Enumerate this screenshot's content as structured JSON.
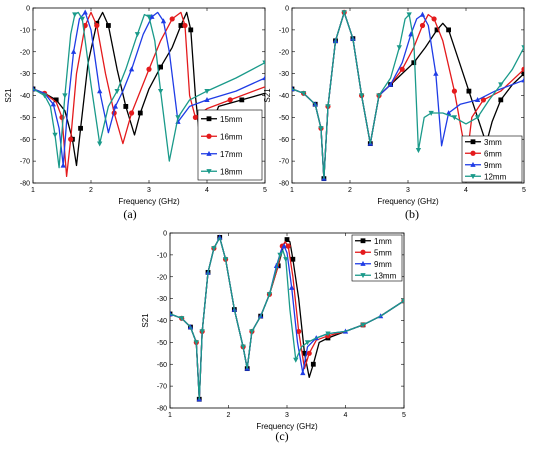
{
  "chart_data": [
    {
      "type": "line",
      "caption": "(a)",
      "xlabel": "Frequency (GHz)",
      "ylabel": "S21",
      "xlim": [
        1,
        5
      ],
      "ylim": [
        -80,
        0
      ],
      "xticks": [
        1,
        2,
        3,
        4,
        5
      ],
      "yticks": [
        0,
        -10,
        -20,
        -30,
        -40,
        -50,
        -60,
        -70,
        -80
      ],
      "legend_position": "right",
      "series": [
        {
          "name": "15mm",
          "color": "#000000",
          "marker": "square",
          "x": [
            1.0,
            1.2,
            1.4,
            1.55,
            1.68,
            1.75,
            1.82,
            1.95,
            2.1,
            2.2,
            2.3,
            2.45,
            2.6,
            2.75,
            2.85,
            3.0,
            3.2,
            3.4,
            3.55,
            3.65,
            3.72,
            3.8,
            3.9,
            4.2,
            4.6,
            5.0
          ],
          "y": [
            -37,
            -39,
            -42,
            -47,
            -60,
            -72,
            -55,
            -25,
            -7,
            -2,
            -8,
            -28,
            -45,
            -58,
            -48,
            -37,
            -27,
            -18,
            -8,
            -2,
            -10,
            -40,
            -66,
            -45,
            -42,
            -39
          ]
        },
        {
          "name": "16mm",
          "color": "#e41a1c",
          "marker": "circle",
          "x": [
            1.0,
            1.2,
            1.4,
            1.5,
            1.58,
            1.65,
            1.75,
            1.9,
            2.0,
            2.1,
            2.25,
            2.4,
            2.55,
            2.7,
            2.85,
            3.0,
            3.2,
            3.4,
            3.55,
            3.62,
            3.7,
            3.8,
            4.0,
            4.4,
            5.0
          ],
          "y": [
            -37,
            -39,
            -43,
            -50,
            -77,
            -60,
            -30,
            -8,
            -2,
            -8,
            -30,
            -48,
            -62,
            -48,
            -38,
            -28,
            -15,
            -5,
            -2,
            -8,
            -40,
            -50,
            -46,
            -42,
            -36
          ]
        },
        {
          "name": "17mm",
          "color": "#1f3ce6",
          "marker": "triangle",
          "x": [
            1.0,
            1.2,
            1.35,
            1.45,
            1.52,
            1.6,
            1.7,
            1.8,
            1.9,
            2.0,
            2.15,
            2.3,
            2.42,
            2.55,
            2.7,
            2.9,
            3.05,
            3.15,
            3.25,
            3.35,
            3.5,
            3.7,
            4.0,
            4.5,
            5.0
          ],
          "y": [
            -37,
            -39,
            -44,
            -55,
            -72,
            -45,
            -20,
            -5,
            -2,
            -10,
            -38,
            -57,
            -45,
            -38,
            -28,
            -12,
            -4,
            -2,
            -6,
            -20,
            -52,
            -45,
            -42,
            -38,
            -32
          ]
        },
        {
          "name": "18mm",
          "color": "#1a9a8a",
          "marker": "triangle-down",
          "x": [
            1.0,
            1.2,
            1.3,
            1.38,
            1.45,
            1.55,
            1.65,
            1.72,
            1.78,
            1.85,
            2.0,
            2.15,
            2.3,
            2.45,
            2.6,
            2.8,
            2.92,
            3.0,
            3.1,
            3.2,
            3.35,
            3.5,
            3.7,
            4.0,
            4.5,
            5.0
          ],
          "y": [
            -37,
            -40,
            -45,
            -58,
            -73,
            -40,
            -12,
            -3,
            -2,
            -5,
            -35,
            -62,
            -45,
            -38,
            -28,
            -12,
            -3,
            -4,
            -15,
            -38,
            -70,
            -50,
            -42,
            -38,
            -32,
            -25
          ]
        }
      ]
    },
    {
      "type": "line",
      "caption": "(b)",
      "xlabel": "Frequency (GHz)",
      "ylabel": "S21",
      "xlim": [
        1,
        5
      ],
      "ylim": [
        -80,
        0
      ],
      "xticks": [
        1,
        2,
        3,
        4,
        5
      ],
      "yticks": [
        0,
        -10,
        -20,
        -30,
        -40,
        -50,
        -60,
        -70,
        -80
      ],
      "legend_position": "bottom-right",
      "series": [
        {
          "name": "3mm",
          "color": "#000000",
          "marker": "square",
          "x": [
            1.0,
            1.2,
            1.4,
            1.5,
            1.55,
            1.62,
            1.75,
            1.9,
            2.05,
            2.2,
            2.35,
            2.5,
            2.7,
            2.9,
            3.1,
            3.3,
            3.5,
            3.6,
            3.7,
            3.85,
            4.05,
            4.2,
            4.35,
            4.45,
            4.6,
            4.8,
            5.0
          ],
          "y": [
            -37,
            -39,
            -44,
            -55,
            -78,
            -45,
            -15,
            -2,
            -14,
            -40,
            -62,
            -40,
            -35,
            -30,
            -25,
            -18,
            -10,
            -7,
            -10,
            -22,
            -38,
            -50,
            -62,
            -52,
            -42,
            -35,
            -30
          ]
        },
        {
          "name": "6mm",
          "color": "#e41a1c",
          "marker": "circle",
          "x": [
            1.0,
            1.2,
            1.4,
            1.5,
            1.55,
            1.62,
            1.75,
            1.9,
            2.05,
            2.2,
            2.35,
            2.5,
            2.7,
            2.9,
            3.1,
            3.25,
            3.35,
            3.45,
            3.6,
            3.8,
            3.95,
            4.0,
            4.1,
            4.3,
            4.6,
            5.0
          ],
          "y": [
            -37,
            -39,
            -44,
            -55,
            -78,
            -45,
            -15,
            -2,
            -14,
            -40,
            -62,
            -40,
            -35,
            -28,
            -18,
            -8,
            -3,
            -5,
            -15,
            -38,
            -60,
            -72,
            -50,
            -42,
            -38,
            -28
          ]
        },
        {
          "name": "9mm",
          "color": "#1f3ce6",
          "marker": "triangle",
          "x": [
            1.0,
            1.2,
            1.4,
            1.5,
            1.55,
            1.62,
            1.75,
            1.9,
            2.05,
            2.2,
            2.35,
            2.5,
            2.7,
            2.9,
            3.05,
            3.15,
            3.25,
            3.35,
            3.48,
            3.58,
            3.7,
            3.9,
            4.2,
            4.5,
            5.0
          ],
          "y": [
            -37,
            -39,
            -44,
            -55,
            -78,
            -45,
            -15,
            -2,
            -14,
            -40,
            -62,
            -40,
            -35,
            -25,
            -12,
            -5,
            -3,
            -8,
            -30,
            -63,
            -48,
            -44,
            -42,
            -38,
            -33
          ]
        },
        {
          "name": "12mm",
          "color": "#1a9a8a",
          "marker": "triangle-down",
          "x": [
            1.0,
            1.2,
            1.4,
            1.5,
            1.55,
            1.62,
            1.75,
            1.9,
            2.05,
            2.2,
            2.35,
            2.5,
            2.7,
            2.85,
            2.95,
            3.02,
            3.1,
            3.18,
            3.28,
            3.4,
            3.6,
            3.8,
            4.0,
            4.2,
            4.4,
            4.6,
            4.8,
            5.0
          ],
          "y": [
            -37,
            -39,
            -44,
            -55,
            -78,
            -45,
            -15,
            -2,
            -14,
            -40,
            -62,
            -40,
            -32,
            -18,
            -5,
            -3,
            -15,
            -65,
            -50,
            -48,
            -48,
            -50,
            -53,
            -50,
            -42,
            -35,
            -28,
            -18
          ]
        }
      ]
    },
    {
      "type": "line",
      "caption": "(c)",
      "xlabel": "Frequency (GHz)",
      "ylabel": "S21",
      "xlim": [
        1,
        5
      ],
      "ylim": [
        -80,
        0
      ],
      "xticks": [
        1,
        2,
        3,
        4,
        5
      ],
      "yticks": [
        0,
        -10,
        -20,
        -30,
        -40,
        -50,
        -60,
        -70,
        -80
      ],
      "legend_position": "top-right",
      "series": [
        {
          "name": "1mm",
          "color": "#000000",
          "marker": "square",
          "x": [
            1.0,
            1.2,
            1.35,
            1.45,
            1.5,
            1.55,
            1.65,
            1.75,
            1.85,
            1.95,
            2.1,
            2.25,
            2.32,
            2.4,
            2.55,
            2.7,
            2.85,
            2.95,
            3.0,
            3.05,
            3.1,
            3.2,
            3.3,
            3.38,
            3.45,
            3.55,
            3.7,
            4.0,
            4.3,
            4.6,
            5.0
          ],
          "y": [
            -37,
            -39,
            -43,
            -50,
            -76,
            -45,
            -18,
            -7,
            -2,
            -12,
            -35,
            -52,
            -62,
            -45,
            -38,
            -28,
            -15,
            -5,
            -3,
            -4,
            -12,
            -30,
            -55,
            -66,
            -60,
            -50,
            -48,
            -45,
            -42,
            -38,
            -31
          ]
        },
        {
          "name": "5mm",
          "color": "#e41a1c",
          "marker": "circle",
          "x": [
            1.0,
            1.2,
            1.35,
            1.45,
            1.5,
            1.55,
            1.65,
            1.75,
            1.85,
            1.95,
            2.1,
            2.25,
            2.32,
            2.4,
            2.55,
            2.7,
            2.85,
            2.92,
            2.97,
            3.02,
            3.1,
            3.2,
            3.3,
            3.38,
            3.5,
            3.7,
            4.0,
            4.3,
            4.6,
            5.0
          ],
          "y": [
            -37,
            -39,
            -43,
            -50,
            -76,
            -45,
            -18,
            -7,
            -2,
            -12,
            -35,
            -52,
            -62,
            -45,
            -38,
            -28,
            -15,
            -6,
            -4,
            -6,
            -20,
            -45,
            -62,
            -55,
            -49,
            -47,
            -45,
            -42,
            -38,
            -31
          ]
        },
        {
          "name": "9mm",
          "color": "#1f3ce6",
          "marker": "triangle",
          "x": [
            1.0,
            1.2,
            1.35,
            1.45,
            1.5,
            1.55,
            1.65,
            1.75,
            1.85,
            1.95,
            2.1,
            2.25,
            2.32,
            2.4,
            2.55,
            2.7,
            2.82,
            2.9,
            2.95,
            3.0,
            3.08,
            3.18,
            3.27,
            3.35,
            3.5,
            3.7,
            4.0,
            4.3,
            4.6,
            5.0
          ],
          "y": [
            -37,
            -39,
            -43,
            -50,
            -76,
            -45,
            -18,
            -7,
            -2,
            -12,
            -35,
            -52,
            -62,
            -45,
            -38,
            -28,
            -15,
            -8,
            -6,
            -9,
            -25,
            -50,
            -64,
            -52,
            -48,
            -46,
            -45,
            -42,
            -38,
            -31
          ]
        },
        {
          "name": "13mm",
          "color": "#1a9a8a",
          "marker": "triangle-down",
          "x": [
            1.0,
            1.2,
            1.35,
            1.45,
            1.5,
            1.55,
            1.65,
            1.75,
            1.85,
            1.95,
            2.1,
            2.25,
            2.32,
            2.4,
            2.55,
            2.7,
            2.8,
            2.88,
            2.93,
            2.98,
            3.05,
            3.15,
            3.25,
            3.35,
            3.5,
            3.7,
            4.0,
            4.3,
            4.6,
            5.0
          ],
          "y": [
            -37,
            -39,
            -43,
            -50,
            -76,
            -45,
            -18,
            -7,
            -2,
            -12,
            -35,
            -52,
            -62,
            -45,
            -38,
            -28,
            -18,
            -10,
            -8,
            -12,
            -35,
            -58,
            -52,
            -50,
            -48,
            -46,
            -45,
            -42,
            -38,
            -31
          ]
        }
      ]
    }
  ]
}
